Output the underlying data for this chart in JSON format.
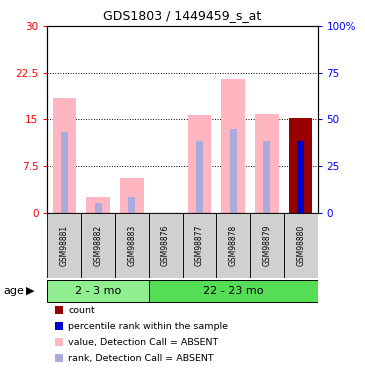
{
  "title": "GDS1803 / 1449459_s_at",
  "samples": [
    "GSM98881",
    "GSM98882",
    "GSM98883",
    "GSM98876",
    "GSM98877",
    "GSM98878",
    "GSM98879",
    "GSM98880"
  ],
  "groups": [
    {
      "label": "2 - 3 mo",
      "start": 0,
      "end": 3,
      "color": "#90EE90"
    },
    {
      "label": "22 - 23 mo",
      "start": 3,
      "end": 8,
      "color": "#55DD55"
    }
  ],
  "pink_bar_heights": [
    18.5,
    2.5,
    5.5,
    0.0,
    15.7,
    21.5,
    15.8,
    0.0
  ],
  "blue_bar_heights": [
    13.0,
    1.5,
    2.5,
    0.0,
    11.5,
    13.5,
    11.5,
    0.0
  ],
  "red_bar_heights": [
    0.0,
    0.0,
    0.0,
    0.0,
    0.0,
    0.0,
    0.0,
    15.2
  ],
  "darkblue_bar_heights": [
    0.0,
    0.0,
    0.0,
    0.0,
    0.0,
    0.0,
    0.0,
    11.5
  ],
  "pink_color": "#FFB6C1",
  "lavender_color": "#AAAADD",
  "red_color": "#990000",
  "darkblue_color": "#0000CC",
  "ylim_left": [
    0,
    30
  ],
  "ylim_right": [
    0,
    100
  ],
  "yticks_left": [
    0,
    7.5,
    15,
    22.5,
    30
  ],
  "yticks_right": [
    0,
    25,
    50,
    75,
    100
  ],
  "ytick_labels_left": [
    "0",
    "7.5",
    "15",
    "22.5",
    "30"
  ],
  "ytick_labels_right": [
    "0",
    "25",
    "50",
    "75",
    "100%"
  ],
  "bar_width": 0.7,
  "legend_items": [
    {
      "color": "#990000",
      "label": "count"
    },
    {
      "color": "#0000CC",
      "label": "percentile rank within the sample"
    },
    {
      "color": "#FFB6C1",
      "label": "value, Detection Call = ABSENT"
    },
    {
      "color": "#AAAADD",
      "label": "rank, Detection Call = ABSENT"
    }
  ],
  "age_label": "age"
}
